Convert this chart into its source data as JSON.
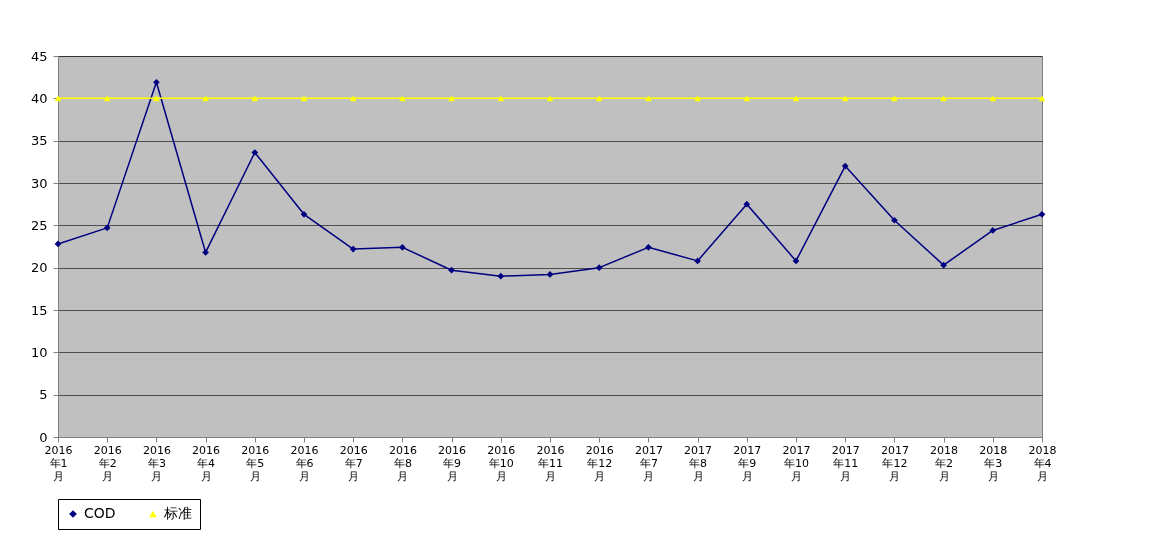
{
  "chart_data": {
    "type": "line",
    "categories": [
      "2016年1月",
      "2016年2月",
      "2016年3月",
      "2016年4月",
      "2016年5月",
      "2016年6月",
      "2016年7月",
      "2016年8月",
      "2016年9月",
      "2016年10月",
      "2016年11月",
      "2016年12月",
      "2017年7月",
      "2017年8月",
      "2017年9月",
      "2017年10月",
      "2017年11月",
      "2017年12月",
      "2018年2月",
      "2018年3月",
      "2018年4月"
    ],
    "series": [
      {
        "name": "COD",
        "color": "#000080",
        "marker": "diamond",
        "values": [
          22.8,
          24.7,
          41.9,
          21.8,
          33.6,
          26.3,
          22.2,
          22.4,
          19.7,
          19.0,
          19.2,
          20.0,
          22.4,
          20.8,
          27.5,
          20.8,
          32.0,
          25.6,
          20.3,
          24.4,
          26.3
        ]
      },
      {
        "name": "标准",
        "color": "#ffff00",
        "marker": "triangle",
        "values": [
          40,
          40,
          40,
          40,
          40,
          40,
          40,
          40,
          40,
          40,
          40,
          40,
          40,
          40,
          40,
          40,
          40,
          40,
          40,
          40,
          40
        ]
      }
    ],
    "ylim": [
      0,
      45
    ],
    "yticks": [
      0,
      5,
      10,
      15,
      20,
      25,
      30,
      35,
      40,
      45
    ],
    "grid": "y",
    "legend": "bottom",
    "line_style": "solid"
  }
}
